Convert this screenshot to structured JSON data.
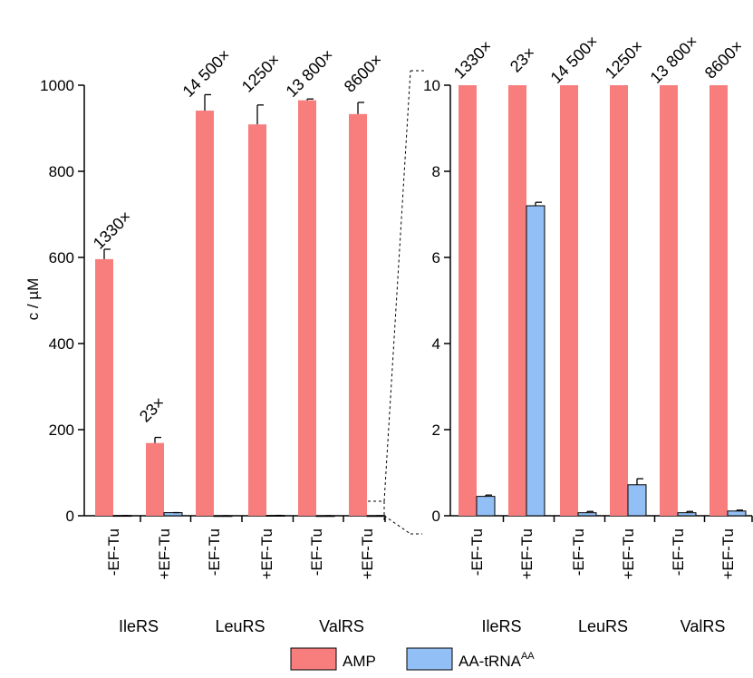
{
  "colors": {
    "amp": "#f87e7e",
    "aatrna": "#92bff6",
    "axis": "#000000"
  },
  "chart_data": [
    {
      "type": "bar",
      "panel": "full",
      "ylabel": "c / µM",
      "ylim": [
        0,
        1000
      ],
      "yticks": [
        "0",
        "200",
        "400",
        "600",
        "800",
        "1000"
      ],
      "groups": [
        "IleRS",
        "LeuRS",
        "ValRS"
      ],
      "conditions": [
        "-EF-Tu",
        "+EF-Tu"
      ],
      "series": [
        {
          "name": "AMP",
          "values": [
            596,
            169,
            941,
            909,
            965,
            933
          ],
          "errors": [
            23,
            13,
            37,
            45,
            3,
            27
          ]
        },
        {
          "name": "AA-tRNAAA",
          "values": [
            0.45,
            7.2,
            0.07,
            0.72,
            0.07,
            0.11
          ],
          "errors": [
            0.03,
            0.08,
            0.03,
            0.14,
            0.03,
            0.02
          ]
        }
      ],
      "annotations": [
        "1330×",
        "23×",
        "14 500×",
        "1250×",
        "13 800×",
        "8600×"
      ]
    },
    {
      "type": "bar",
      "panel": "zoom",
      "ylim": [
        0,
        10
      ],
      "yticks": [
        "0",
        "2",
        "4",
        "6",
        "8",
        "10"
      ],
      "groups": [
        "IleRS",
        "LeuRS",
        "ValRS"
      ],
      "conditions": [
        "-EF-Tu",
        "+EF-Tu"
      ],
      "series": [
        {
          "name": "AMP",
          "values": [
            596,
            169,
            941,
            909,
            965,
            933
          ],
          "errors": [
            23,
            13,
            37,
            45,
            3,
            27
          ]
        },
        {
          "name": "AA-tRNAAA",
          "values": [
            0.45,
            7.2,
            0.07,
            0.72,
            0.07,
            0.11
          ],
          "errors": [
            0.03,
            0.08,
            0.03,
            0.14,
            0.03,
            0.02
          ]
        }
      ],
      "annotations": [
        "1330×",
        "23×",
        "14 500×",
        "1250×",
        "13 800×",
        "8600×"
      ]
    }
  ],
  "legend": {
    "amp_label": "AMP",
    "aatrna_label": "AA-tRNA",
    "aatrna_superscript": "AA"
  }
}
